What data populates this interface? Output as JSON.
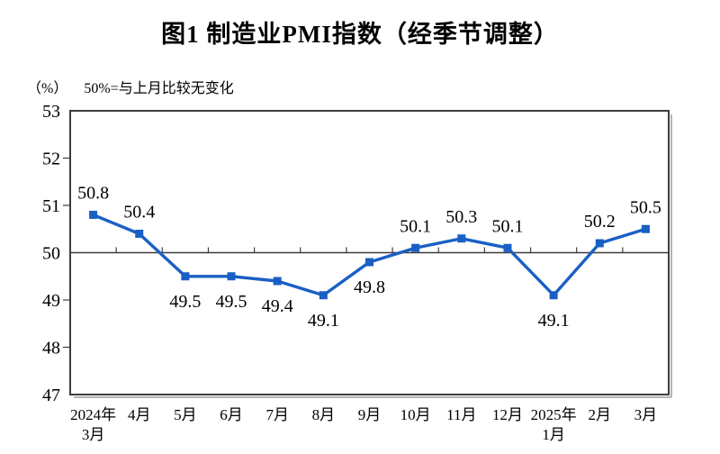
{
  "chart_data": {
    "type": "line",
    "title": "图1 制造业PMI指数（经季节调整）",
    "unit_label": "（%）",
    "note": "50%=与上月比较无变化",
    "categories": [
      [
        "2024年",
        "3月"
      ],
      [
        "4月"
      ],
      [
        "5月"
      ],
      [
        "6月"
      ],
      [
        "7月"
      ],
      [
        "8月"
      ],
      [
        "9月"
      ],
      [
        "10月"
      ],
      [
        "11月"
      ],
      [
        "12月"
      ],
      [
        "2025年",
        "1月"
      ],
      [
        "2月"
      ],
      [
        "3月"
      ]
    ],
    "values": [
      50.8,
      50.4,
      49.5,
      49.5,
      49.4,
      49.1,
      49.8,
      50.1,
      50.3,
      50.1,
      49.1,
      50.2,
      50.5
    ],
    "data_labels": [
      "50.8",
      "50.4",
      "49.5",
      "49.5",
      "49.4",
      "49.1",
      "49.8",
      "50.1",
      "50.3",
      "50.1",
      "49.1",
      "50.2",
      "50.5"
    ],
    "label_placement": [
      "above",
      "above",
      "below",
      "below",
      "below",
      "below",
      "below",
      "above",
      "above",
      "above",
      "below",
      "above",
      "above"
    ],
    "ylim": [
      47,
      53
    ],
    "yticks": [
      47,
      48,
      49,
      50,
      51,
      52,
      53
    ],
    "reference_line": 50,
    "grid": "none",
    "legend": "none",
    "marker": "square",
    "line_color": "#1a5fc4",
    "axis_color": "#3d3d3d",
    "shadow_color": "#b4b4b4",
    "text_color": "#000000"
  }
}
